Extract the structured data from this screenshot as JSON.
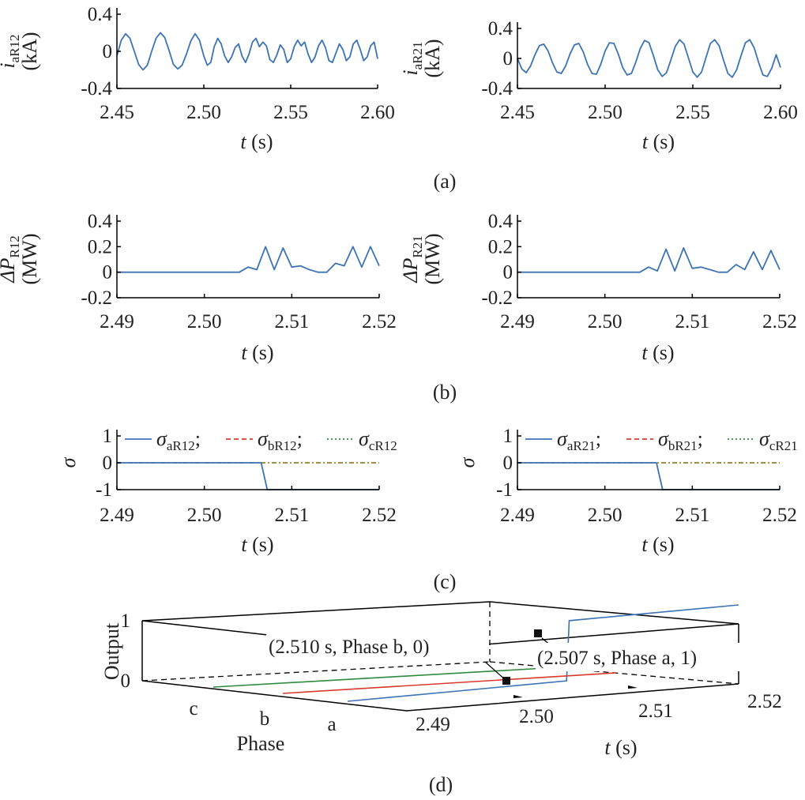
{
  "colors": {
    "a": "#3b73b4",
    "b": "#d83a2c",
    "c": "#2e8b3d",
    "mix": "#9c7d2a",
    "black": "#000000"
  },
  "captions": {
    "a": "(a)",
    "b": "(b)",
    "c": "(c)",
    "d": "(d)"
  },
  "chart_data": [
    {
      "id": "a-left",
      "type": "line",
      "ylabel": {
        "sym": "i",
        "sub": "aR12",
        "unit": "(kA)"
      },
      "xlabel": {
        "sym": "t",
        "unit": " (s)"
      },
      "xlim": [
        2.45,
        2.6
      ],
      "ylim": [
        -0.4,
        0.4
      ],
      "xticks": [
        "2.45",
        "2.50",
        "2.55",
        "2.60"
      ],
      "yticks": [
        "0.4",
        "0",
        "-0.4"
      ],
      "series": [
        {
          "color": "a",
          "x": [
            2.45,
            2.4525,
            2.455,
            2.4575,
            2.46,
            2.4625,
            2.465,
            2.4675,
            2.47,
            2.4725,
            2.475,
            2.4775,
            2.48,
            2.4825,
            2.485,
            2.4875,
            2.49,
            2.4925,
            2.495,
            2.4975,
            2.5,
            2.502,
            2.504,
            2.506,
            2.508,
            2.51,
            2.512,
            2.514,
            2.516,
            2.518,
            2.52,
            2.522,
            2.524,
            2.526,
            2.528,
            2.53,
            2.532,
            2.534,
            2.536,
            2.538,
            2.54,
            2.542,
            2.544,
            2.546,
            2.548,
            2.55,
            2.552,
            2.554,
            2.556,
            2.558,
            2.56,
            2.562,
            2.564,
            2.566,
            2.568,
            2.57,
            2.572,
            2.574,
            2.576,
            2.578,
            2.58,
            2.582,
            2.584,
            2.586,
            2.588,
            2.59,
            2.592,
            2.594,
            2.596,
            2.598,
            2.6
          ],
          "y": [
            -0.05,
            0.12,
            0.19,
            0.14,
            0.0,
            -0.14,
            -0.2,
            -0.15,
            0.0,
            0.14,
            0.2,
            0.15,
            0.01,
            -0.14,
            -0.19,
            -0.15,
            -0.03,
            0.11,
            0.19,
            0.12,
            -0.05,
            -0.15,
            -0.12,
            0.05,
            0.14,
            0.08,
            -0.05,
            -0.12,
            -0.06,
            0.04,
            0.08,
            -0.05,
            -0.12,
            -0.03,
            0.1,
            0.14,
            0.05,
            0.1,
            0.06,
            -0.09,
            -0.12,
            -0.04,
            0.07,
            0.02,
            -0.12,
            -0.08,
            0.05,
            0.12,
            0.06,
            0.1,
            -0.03,
            -0.12,
            -0.06,
            0.06,
            0.12,
            0.04,
            -0.1,
            -0.12,
            -0.02,
            0.08,
            0.02,
            -0.1,
            -0.06,
            0.08,
            0.12,
            0.02,
            -0.1,
            -0.06,
            0.06,
            0.1,
            -0.08
          ]
        }
      ]
    },
    {
      "id": "a-right",
      "type": "line",
      "ylabel": {
        "sym": "i",
        "sub": "aR21",
        "unit": "(kA)"
      },
      "xlabel": {
        "sym": "t",
        "unit": " (s)"
      },
      "xlim": [
        2.45,
        2.6
      ],
      "ylim": [
        -0.4,
        0.4
      ],
      "xticks": [
        "2.45",
        "2.50",
        "2.55",
        "2.60"
      ],
      "yticks": [
        "0.4",
        "0",
        "-0.4"
      ],
      "series": [
        {
          "color": "a",
          "x": [
            2.45,
            2.4525,
            2.455,
            2.4575,
            2.46,
            2.4625,
            2.465,
            2.4675,
            2.47,
            2.4725,
            2.475,
            2.4775,
            2.48,
            2.4825,
            2.485,
            2.4875,
            2.49,
            2.4925,
            2.495,
            2.4975,
            2.5,
            2.5025,
            2.505,
            2.5075,
            2.51,
            2.5125,
            2.515,
            2.5175,
            2.52,
            2.5225,
            2.525,
            2.5275,
            2.53,
            2.5325,
            2.535,
            2.5375,
            2.54,
            2.5425,
            2.545,
            2.5475,
            2.55,
            2.5525,
            2.555,
            2.5575,
            2.56,
            2.5625,
            2.565,
            2.5675,
            2.57,
            2.5725,
            2.575,
            2.5775,
            2.58,
            2.5825,
            2.585,
            2.5875,
            2.59,
            2.5925,
            2.595,
            2.5975,
            2.6
          ],
          "y": [
            0.0,
            -0.14,
            -0.19,
            -0.1,
            0.05,
            0.17,
            0.19,
            0.1,
            -0.06,
            -0.18,
            -0.2,
            -0.1,
            0.06,
            0.18,
            0.2,
            0.09,
            -0.08,
            -0.2,
            -0.21,
            -0.08,
            0.1,
            0.21,
            0.2,
            0.06,
            -0.12,
            -0.22,
            -0.2,
            -0.05,
            0.13,
            0.24,
            0.21,
            0.04,
            -0.15,
            -0.24,
            -0.19,
            -0.02,
            0.16,
            0.25,
            0.19,
            0.01,
            -0.18,
            -0.25,
            -0.18,
            0.01,
            0.2,
            0.25,
            0.17,
            -0.02,
            -0.2,
            -0.25,
            -0.15,
            0.04,
            0.21,
            0.25,
            0.14,
            -0.05,
            -0.22,
            -0.24,
            -0.13,
            0.05,
            -0.12
          ]
        }
      ]
    },
    {
      "id": "b-left",
      "type": "line",
      "ylabel": {
        "sym": "ΔP",
        "sub": "R12",
        "unit": "(MW)"
      },
      "xlabel": {
        "sym": "t",
        "unit": " (s)"
      },
      "xlim": [
        2.49,
        2.52
      ],
      "ylim": [
        -0.2,
        0.4
      ],
      "xticks": [
        "2.49",
        "2.50",
        "2.51",
        "2.52"
      ],
      "yticks": [
        "0.4",
        "0.2",
        "0",
        "-0.2"
      ],
      "series": [
        {
          "color": "a",
          "x": [
            2.49,
            2.504,
            2.505,
            2.506,
            2.507,
            2.508,
            2.509,
            2.51,
            2.511,
            2.512,
            2.513,
            2.514,
            2.515,
            2.516,
            2.517,
            2.518,
            2.519,
            2.52
          ],
          "y": [
            0.0,
            0.0,
            0.04,
            0.02,
            0.2,
            0.02,
            0.19,
            0.04,
            0.05,
            0.02,
            0.0,
            0.0,
            0.07,
            0.05,
            0.2,
            0.04,
            0.2,
            0.05
          ]
        }
      ]
    },
    {
      "id": "b-right",
      "type": "line",
      "ylabel": {
        "sym": "ΔP",
        "sub": "R21",
        "unit": "(MW)"
      },
      "xlabel": {
        "sym": "t",
        "unit": " (s)"
      },
      "xlim": [
        2.49,
        2.52
      ],
      "ylim": [
        -0.2,
        0.4
      ],
      "xticks": [
        "2.49",
        "2.50",
        "2.51",
        "2.52"
      ],
      "yticks": [
        "0.4",
        "0.2",
        "0",
        "-0.2"
      ],
      "series": [
        {
          "color": "a",
          "x": [
            2.49,
            2.504,
            2.505,
            2.506,
            2.507,
            2.508,
            2.509,
            2.51,
            2.511,
            2.512,
            2.513,
            2.514,
            2.515,
            2.516,
            2.517,
            2.518,
            2.519,
            2.52
          ],
          "y": [
            0.0,
            0.0,
            0.04,
            0.01,
            0.18,
            0.01,
            0.19,
            0.03,
            0.04,
            0.02,
            0.0,
            0.0,
            0.06,
            0.02,
            0.16,
            0.02,
            0.17,
            0.02
          ]
        }
      ]
    },
    {
      "id": "c-left",
      "type": "line",
      "ylabel": {
        "sym": "σ",
        "sub": "",
        "unit": ""
      },
      "xlabel": {
        "sym": "t",
        "unit": " (s)"
      },
      "xlim": [
        2.49,
        2.52
      ],
      "ylim": [
        -1,
        1
      ],
      "xticks": [
        "2.49",
        "2.50",
        "2.51",
        "2.52"
      ],
      "yticks": [
        "1",
        "0",
        "-1"
      ],
      "legend": [
        {
          "sub": "aR12",
          "color": "a",
          "dash": "",
          "sep": ";"
        },
        {
          "sub": "bR12",
          "color": "b",
          "dash": "6 4",
          "sep": ";"
        },
        {
          "sub": "cR12",
          "color": "c",
          "dash": "2 3",
          "sep": ""
        }
      ],
      "series": [
        {
          "color": "mix",
          "dash": "6 3 2 3",
          "x": [
            2.49,
            2.52
          ],
          "y": [
            0,
            0
          ]
        },
        {
          "color": "a",
          "dash": "",
          "x": [
            2.49,
            2.5065,
            2.5072,
            2.52
          ],
          "y": [
            0,
            0,
            -1,
            -1
          ]
        }
      ]
    },
    {
      "id": "c-right",
      "type": "line",
      "ylabel": {
        "sym": "σ",
        "sub": "",
        "unit": ""
      },
      "xlabel": {
        "sym": "t",
        "unit": " (s)"
      },
      "xlim": [
        2.49,
        2.52
      ],
      "ylim": [
        -1,
        1
      ],
      "xticks": [
        "2.49",
        "2.50",
        "2.51",
        "2.52"
      ],
      "yticks": [
        "1",
        "0",
        "-1"
      ],
      "legend": [
        {
          "sub": "aR21",
          "color": "a",
          "dash": "",
          "sep": ";"
        },
        {
          "sub": "bR21",
          "color": "b",
          "dash": "6 4",
          "sep": ";"
        },
        {
          "sub": "cR21",
          "color": "c",
          "dash": "2 3",
          "sep": ""
        }
      ],
      "series": [
        {
          "color": "mix",
          "dash": "6 3 2 3",
          "x": [
            2.49,
            2.52
          ],
          "y": [
            0,
            0
          ]
        },
        {
          "color": "a",
          "dash": "",
          "x": [
            2.49,
            2.5059,
            2.5066,
            2.52
          ],
          "y": [
            0,
            0,
            -1,
            -1
          ]
        }
      ]
    },
    {
      "id": "d",
      "type": "line3d",
      "zlabel": "Output",
      "ylabel": "Phase",
      "xlabel": {
        "sym": "t",
        "unit": " (s)"
      },
      "xlim": [
        2.49,
        2.52
      ],
      "zlim": [
        0,
        1
      ],
      "xticks": [
        "2.49",
        "2.50",
        "2.51",
        "2.52"
      ],
      "phases": [
        "a",
        "b",
        "c"
      ],
      "zticks": [
        "1",
        "0"
      ],
      "series": [
        {
          "phase": "a",
          "color": "a",
          "x": [
            2.49,
            2.5068,
            2.507,
            2.52
          ],
          "z": [
            0,
            0,
            1,
            1
          ]
        },
        {
          "phase": "b",
          "color": "b",
          "x": [
            2.49,
            2.52
          ],
          "z": [
            0,
            0
          ]
        },
        {
          "phase": "c",
          "color": "c",
          "x": [
            2.49,
            2.52
          ],
          "z": [
            0,
            0
          ]
        }
      ],
      "annotations": [
        {
          "text": "(2.510 s, Phase b, 0)",
          "x": 2.51,
          "phase": "b",
          "z": 0
        },
        {
          "text": "(2.507 s, Phase a, 1)",
          "x": 2.507,
          "phase": "a",
          "z": 1
        }
      ]
    }
  ]
}
